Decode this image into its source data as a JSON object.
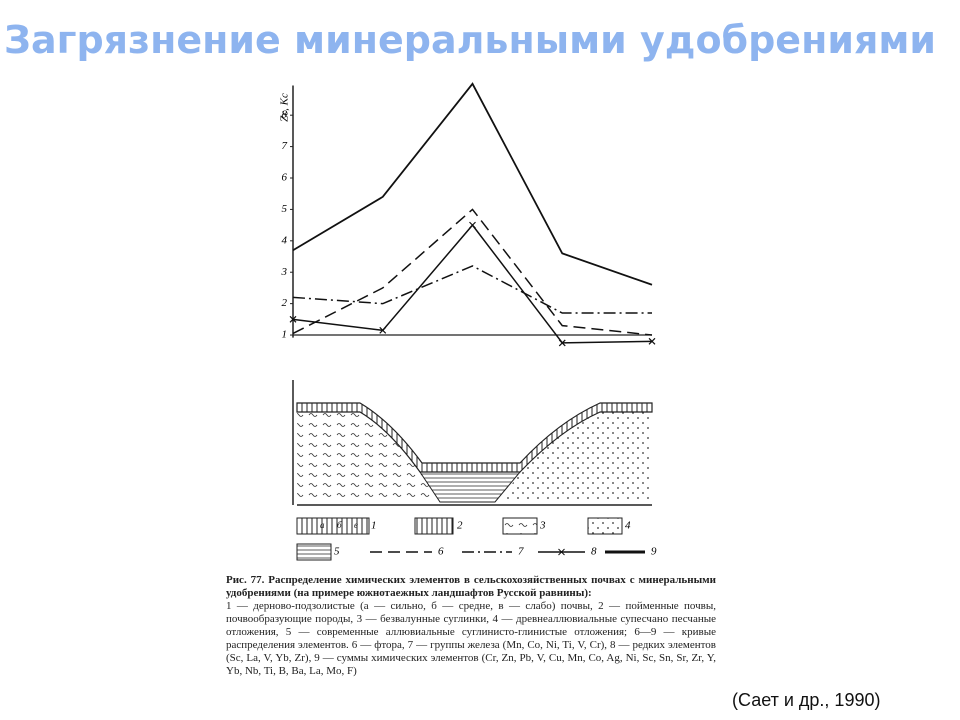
{
  "title": "Загрязнение минеральными удобрениями",
  "chart_data": {
    "type": "line",
    "y_label": "Zc, Kc",
    "categories": [
      null,
      null,
      null,
      null,
      null
    ],
    "series": [
      {
        "name": "9",
        "color": "#111111",
        "line_style": "solid",
        "values": [
          3.7,
          5.4,
          9.0,
          3.6,
          2.6
        ]
      },
      {
        "name": "6",
        "color": "#111111",
        "line_style": "dashed",
        "values": [
          1.05,
          2.5,
          5.0,
          1.3,
          1.0
        ]
      },
      {
        "name": "7",
        "color": "#111111",
        "line_style": "dashdot",
        "values": [
          2.2,
          2.0,
          3.2,
          1.7,
          1.7
        ]
      },
      {
        "name": "8",
        "color": "#111111",
        "line_style": "cross",
        "values": [
          1.5,
          1.15,
          4.5,
          0.75,
          0.8
        ]
      }
    ],
    "ylim": [
      0.6,
      9.2
    ],
    "yticks": [
      1,
      2,
      3,
      4,
      5,
      6,
      7,
      8
    ]
  },
  "legend": {
    "items": [
      "1",
      "2",
      "3",
      "4",
      "5"
    ],
    "sub": [
      "а",
      "б",
      "в"
    ]
  },
  "caption": {
    "heading": "Рис. 77. Распределение химических элементов в сельскохозяйственных почвах с минеральными удобрениями (на примере южнотаежных ландшафтов Русской равнины):",
    "text": "1 — дерново-подзолистые (а — сильно, б — средне, в — слабо) почвы, 2 — пойменные почвы, почвообразующие породы, 3 — безвалунные суглинки, 4 — древнеаллювиальные супесчано песчаные отложения, 5 — современные аллювиальные суглинисто-глинистые отложения; 6—9 — кривые распределения элементов. 6 — фтора, 7 — группы железа (Mn, Co, Ni, Ti, V, Cr), 8 — редких элементов (Sc, La, V, Yb, Zr), 9 — суммы химических элементов (Cr, Zn, Pb, V, Cu, Mn, Co, Ag, Ni, Sc, Sn, Sr, Zr, Y, Yb, Nb, Ti, B, Ba, La, Mo, F)"
  },
  "citation": "(Сает и др., 1990)"
}
